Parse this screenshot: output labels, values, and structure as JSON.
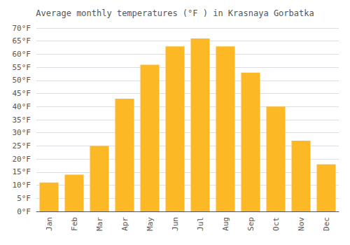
{
  "chart_data": {
    "type": "bar",
    "title": "Average monthly temperatures (°F ) in Krasnaya Gorbatka",
    "categories": [
      "Jan",
      "Feb",
      "Mar",
      "Apr",
      "May",
      "Jun",
      "Jul",
      "Aug",
      "Sep",
      "Oct",
      "Nov",
      "Dec"
    ],
    "values": [
      11,
      14,
      25,
      43,
      56,
      63,
      66,
      63,
      53,
      40,
      27,
      18
    ],
    "color": "#FDB825",
    "ylim": [
      0,
      70
    ],
    "yticks": [
      {
        "value": 0,
        "label": "0°F"
      },
      {
        "value": 5,
        "label": "5°F"
      },
      {
        "value": 10,
        "label": "10°F"
      },
      {
        "value": 15,
        "label": "15°F"
      },
      {
        "value": 20,
        "label": "20°F"
      },
      {
        "value": 25,
        "label": "25°F"
      },
      {
        "value": 30,
        "label": "30°F"
      },
      {
        "value": 35,
        "label": "35°F"
      },
      {
        "value": 40,
        "label": "40°F"
      },
      {
        "value": 45,
        "label": "45°F"
      },
      {
        "value": 50,
        "label": "50°F"
      },
      {
        "value": 55,
        "label": "55°F"
      },
      {
        "value": 60,
        "label": "60°F"
      },
      {
        "value": 65,
        "label": "65°F"
      },
      {
        "value": 70,
        "label": "70°F"
      }
    ],
    "grid": true
  }
}
